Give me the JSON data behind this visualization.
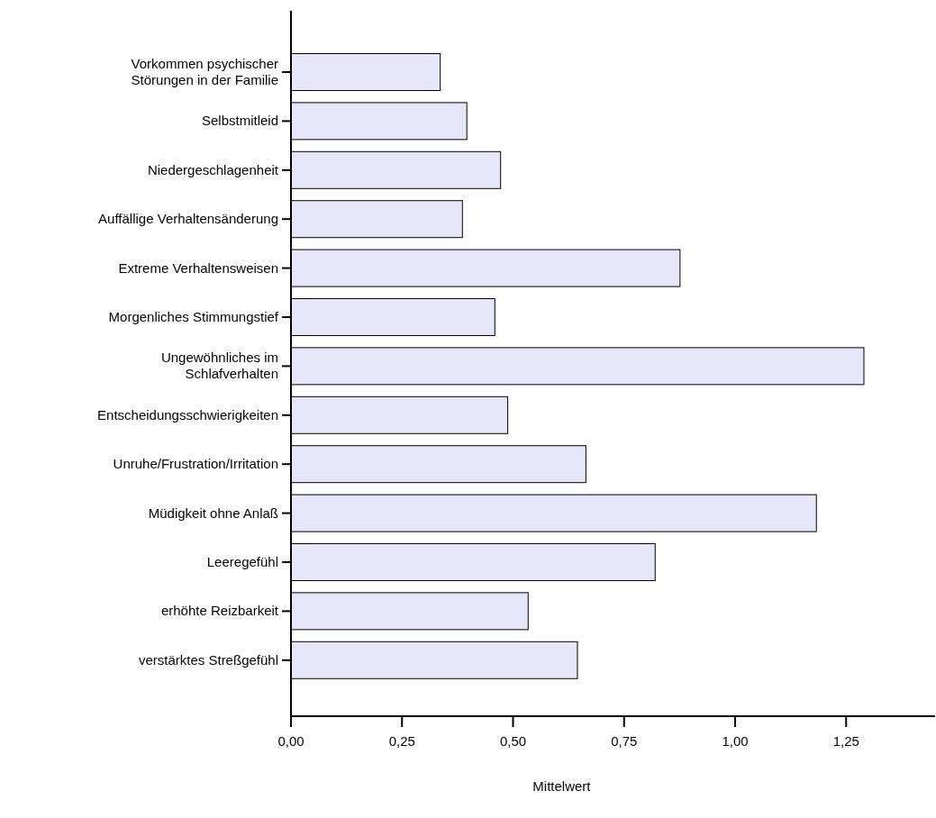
{
  "chart_data": {
    "type": "bar",
    "orientation": "horizontal",
    "xlabel": "Mittelwert",
    "categories": [
      "Vorkommen psychischer\nStörungen in der Familie",
      "Selbstmitleid",
      "Niedergeschlagenheit",
      "Auffällige Verhaltensänderung",
      "Extreme Verhaltensweisen",
      "Morgenliches Stimmungstief",
      "Ungewöhnliches im\nSchlafverhalten",
      "Entscheidungsschwierigkeiten",
      "Unruhe/Frustration/Irritation",
      "Müdigkeit ohne Anlaß",
      "Leeregefühl",
      "erhöhte Reizbarkeit",
      "verstärktes Streßgefühl"
    ],
    "values": [
      0.336,
      0.396,
      0.472,
      0.386,
      0.876,
      0.459,
      1.29,
      0.488,
      0.664,
      1.183,
      0.82,
      0.534,
      0.645
    ],
    "color": "#e6e6fa",
    "xlim": [
      0,
      1.45
    ],
    "xticks": [
      {
        "value": 0,
        "label": "0,00"
      },
      {
        "value": 0.25,
        "label": "0,25"
      },
      {
        "value": 0.5,
        "label": "0,50"
      },
      {
        "value": 0.75,
        "label": "0,75"
      },
      {
        "value": 1,
        "label": "1,00"
      },
      {
        "value": 1.25,
        "label": "1,25"
      }
    ],
    "grid": false
  }
}
